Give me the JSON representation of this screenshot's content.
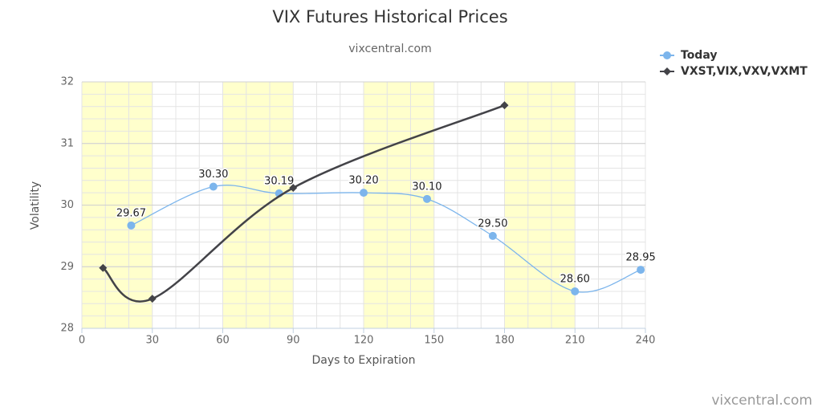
{
  "chart_data": {
    "type": "line",
    "title": "VIX Futures Historical Prices",
    "subtitle": "vixcentral.com",
    "credits": "vixcentral.com",
    "x_label": "Days to Expiration",
    "y_label": "Volatility",
    "xlim": [
      0,
      240
    ],
    "xticks": [
      0,
      30,
      60,
      90,
      120,
      150,
      180,
      210,
      240
    ],
    "ylim": [
      28,
      32
    ],
    "yticks": [
      28,
      29,
      30,
      31,
      32
    ],
    "grid": true,
    "x_minor_interval": 10,
    "y_minor_interval": 0.2,
    "bands": [
      [
        0,
        30
      ],
      [
        60,
        90
      ],
      [
        120,
        150
      ],
      [
        180,
        210
      ]
    ],
    "band_color": "#ffffcc",
    "legend": "top-right",
    "series": [
      {
        "name": "Today",
        "color": "#7cb5ec",
        "marker": "circle",
        "x": [
          21,
          56,
          84,
          120,
          147,
          175,
          210,
          238
        ],
        "values": [
          29.67,
          30.3,
          30.19,
          30.2,
          30.1,
          29.5,
          28.6,
          28.95
        ],
        "value_labels": [
          "29.67",
          "30.30",
          "30.19",
          "30.20",
          "30.10",
          "29.50",
          "28.60",
          "28.95"
        ]
      },
      {
        "name": "VXST,VIX,VXV,VXMT",
        "color": "#434348",
        "marker": "diamond",
        "x": [
          9,
          30,
          90,
          180
        ],
        "values": [
          28.98,
          28.48,
          30.28,
          31.62
        ]
      }
    ]
  }
}
